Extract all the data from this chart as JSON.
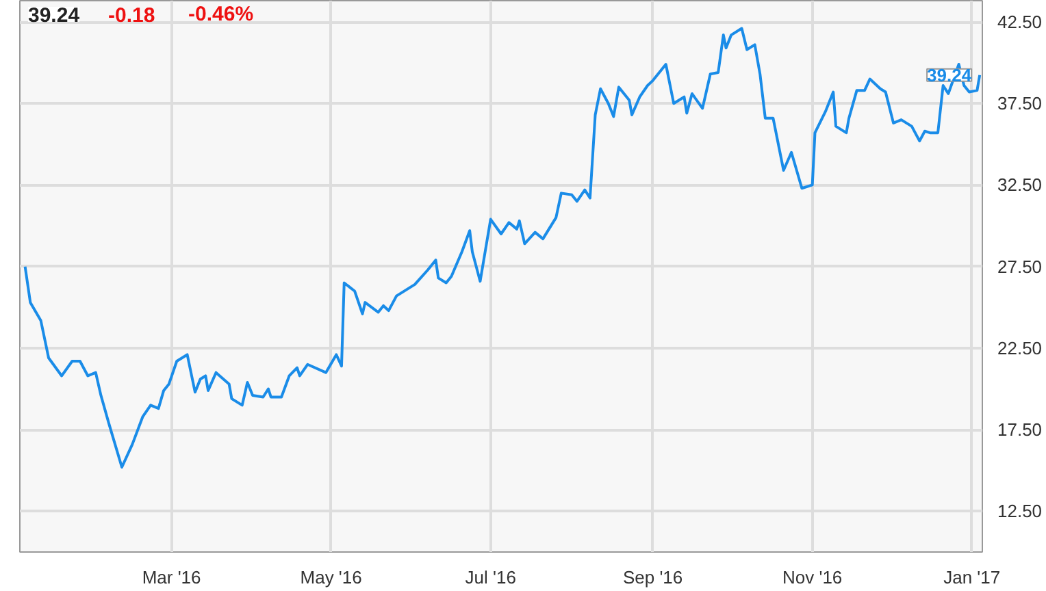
{
  "chart_data": {
    "type": "line",
    "annotations": [
      "39.24",
      "-0.18",
      "-0.46%",
      {
        "text": "39.24",
        "x": "2017-01-04",
        "y": 39.24
      }
    ],
    "xlim": [
      "2016-01-03",
      "2017-01-05"
    ],
    "ylim": [
      10.0,
      43.8
    ],
    "xticks": [
      {
        "value": "2016-03-01",
        "label": "Mar '16"
      },
      {
        "value": "2016-05-01",
        "label": "May '16"
      },
      {
        "value": "2016-07-01",
        "label": "Jul '16"
      },
      {
        "value": "2016-09-01",
        "label": "Sep '16"
      },
      {
        "value": "2016-11-01",
        "label": "Nov '16"
      },
      {
        "value": "2017-01-01",
        "label": "Jan '17"
      }
    ],
    "yticks": [
      {
        "value": 12.5,
        "label": "12.50"
      },
      {
        "value": 17.5,
        "label": "17.50"
      },
      {
        "value": 22.5,
        "label": "22.50"
      },
      {
        "value": 27.5,
        "label": "27.50"
      },
      {
        "value": 32.5,
        "label": "32.50"
      },
      {
        "value": 37.5,
        "label": "37.50"
      },
      {
        "value": 42.5,
        "label": "42.50"
      }
    ],
    "grid": true,
    "marker": "none",
    "line_style": "solid",
    "series": [
      {
        "color": "#1a8ce8",
        "x": [
          "2016-01-05",
          "2016-01-07",
          "2016-01-11",
          "2016-01-14",
          "2016-01-19",
          "2016-01-23",
          "2016-01-26",
          "2016-01-29",
          "2016-02-01",
          "2016-02-03",
          "2016-02-06",
          "2016-02-11",
          "2016-02-15",
          "2016-02-19",
          "2016-02-22",
          "2016-02-25",
          "2016-02-27",
          "2016-02-29",
          "2016-03-03",
          "2016-03-07",
          "2016-03-10",
          "2016-03-12",
          "2016-03-14",
          "2016-03-15",
          "2016-03-18",
          "2016-03-23",
          "2016-03-24",
          "2016-03-28",
          "2016-03-30",
          "2016-04-01",
          "2016-04-05",
          "2016-04-07",
          "2016-04-08",
          "2016-04-12",
          "2016-04-15",
          "2016-04-18",
          "2016-04-19",
          "2016-04-22",
          "2016-04-29",
          "2016-05-03",
          "2016-05-05",
          "2016-05-06",
          "2016-05-10",
          "2016-05-13",
          "2016-05-14",
          "2016-05-19",
          "2016-05-21",
          "2016-05-23",
          "2016-05-26",
          "2016-06-02",
          "2016-06-07",
          "2016-06-10",
          "2016-06-11",
          "2016-06-14",
          "2016-06-16",
          "2016-06-20",
          "2016-06-23",
          "2016-06-24",
          "2016-06-27",
          "2016-07-01",
          "2016-07-05",
          "2016-07-08",
          "2016-07-11",
          "2016-07-12",
          "2016-07-14",
          "2016-07-18",
          "2016-07-21",
          "2016-07-26",
          "2016-07-28",
          "2016-08-01",
          "2016-08-03",
          "2016-08-06",
          "2016-08-08",
          "2016-08-10",
          "2016-08-12",
          "2016-08-15",
          "2016-08-17",
          "2016-08-19",
          "2016-08-23",
          "2016-08-24",
          "2016-08-27",
          "2016-08-30",
          "2016-09-01",
          "2016-09-06",
          "2016-09-09",
          "2016-09-13",
          "2016-09-14",
          "2016-09-16",
          "2016-09-20",
          "2016-09-22",
          "2016-09-23",
          "2016-09-26",
          "2016-09-28",
          "2016-09-29",
          "2016-10-01",
          "2016-10-05",
          "2016-10-07",
          "2016-10-10",
          "2016-10-12",
          "2016-10-14",
          "2016-10-17",
          "2016-10-21",
          "2016-10-24",
          "2016-10-28",
          "2016-11-01",
          "2016-11-02",
          "2016-11-06",
          "2016-11-09",
          "2016-11-10",
          "2016-11-14",
          "2016-11-15",
          "2016-11-18",
          "2016-11-21",
          "2016-11-23",
          "2016-11-27",
          "2016-11-29",
          "2016-12-02",
          "2016-12-05",
          "2016-12-09",
          "2016-12-12",
          "2016-12-14",
          "2016-12-16",
          "2016-12-19",
          "2016-12-21",
          "2016-12-23",
          "2016-12-27",
          "2016-12-29",
          "2016-12-31",
          "2017-01-03",
          "2017-01-04"
        ],
        "values": [
          27.5,
          25.3,
          24.2,
          21.9,
          20.8,
          21.7,
          21.7,
          20.8,
          21.0,
          19.6,
          17.9,
          15.2,
          16.6,
          18.3,
          19.0,
          18.8,
          19.9,
          20.3,
          21.7,
          22.1,
          19.8,
          20.6,
          20.8,
          19.9,
          21.0,
          20.3,
          19.4,
          19.0,
          20.4,
          19.6,
          19.5,
          20.0,
          19.5,
          19.5,
          20.8,
          21.3,
          20.8,
          21.5,
          21.0,
          22.1,
          21.4,
          26.5,
          26.0,
          24.6,
          25.3,
          24.7,
          25.1,
          24.8,
          25.7,
          26.4,
          27.3,
          27.9,
          26.8,
          26.5,
          26.9,
          28.4,
          29.7,
          28.4,
          26.6,
          30.4,
          29.5,
          30.2,
          29.8,
          30.3,
          28.9,
          29.6,
          29.2,
          30.5,
          32.0,
          31.9,
          31.5,
          32.2,
          31.7,
          36.8,
          38.4,
          37.5,
          36.7,
          38.5,
          37.7,
          36.8,
          37.9,
          38.6,
          38.9,
          39.9,
          37.5,
          37.9,
          36.9,
          38.1,
          37.2,
          38.6,
          39.3,
          39.4,
          41.7,
          40.9,
          41.7,
          42.1,
          40.8,
          41.1,
          39.3,
          36.6,
          36.6,
          33.4,
          34.5,
          32.3,
          32.5,
          35.7,
          37.0,
          38.2,
          36.1,
          35.7,
          36.6,
          38.3,
          38.3,
          39.0,
          38.4,
          38.2,
          36.3,
          36.5,
          36.1,
          35.2,
          35.8,
          35.7,
          35.7,
          38.6,
          38.1,
          39.9,
          38.6,
          38.2,
          38.3,
          39.24
        ]
      }
    ]
  }
}
